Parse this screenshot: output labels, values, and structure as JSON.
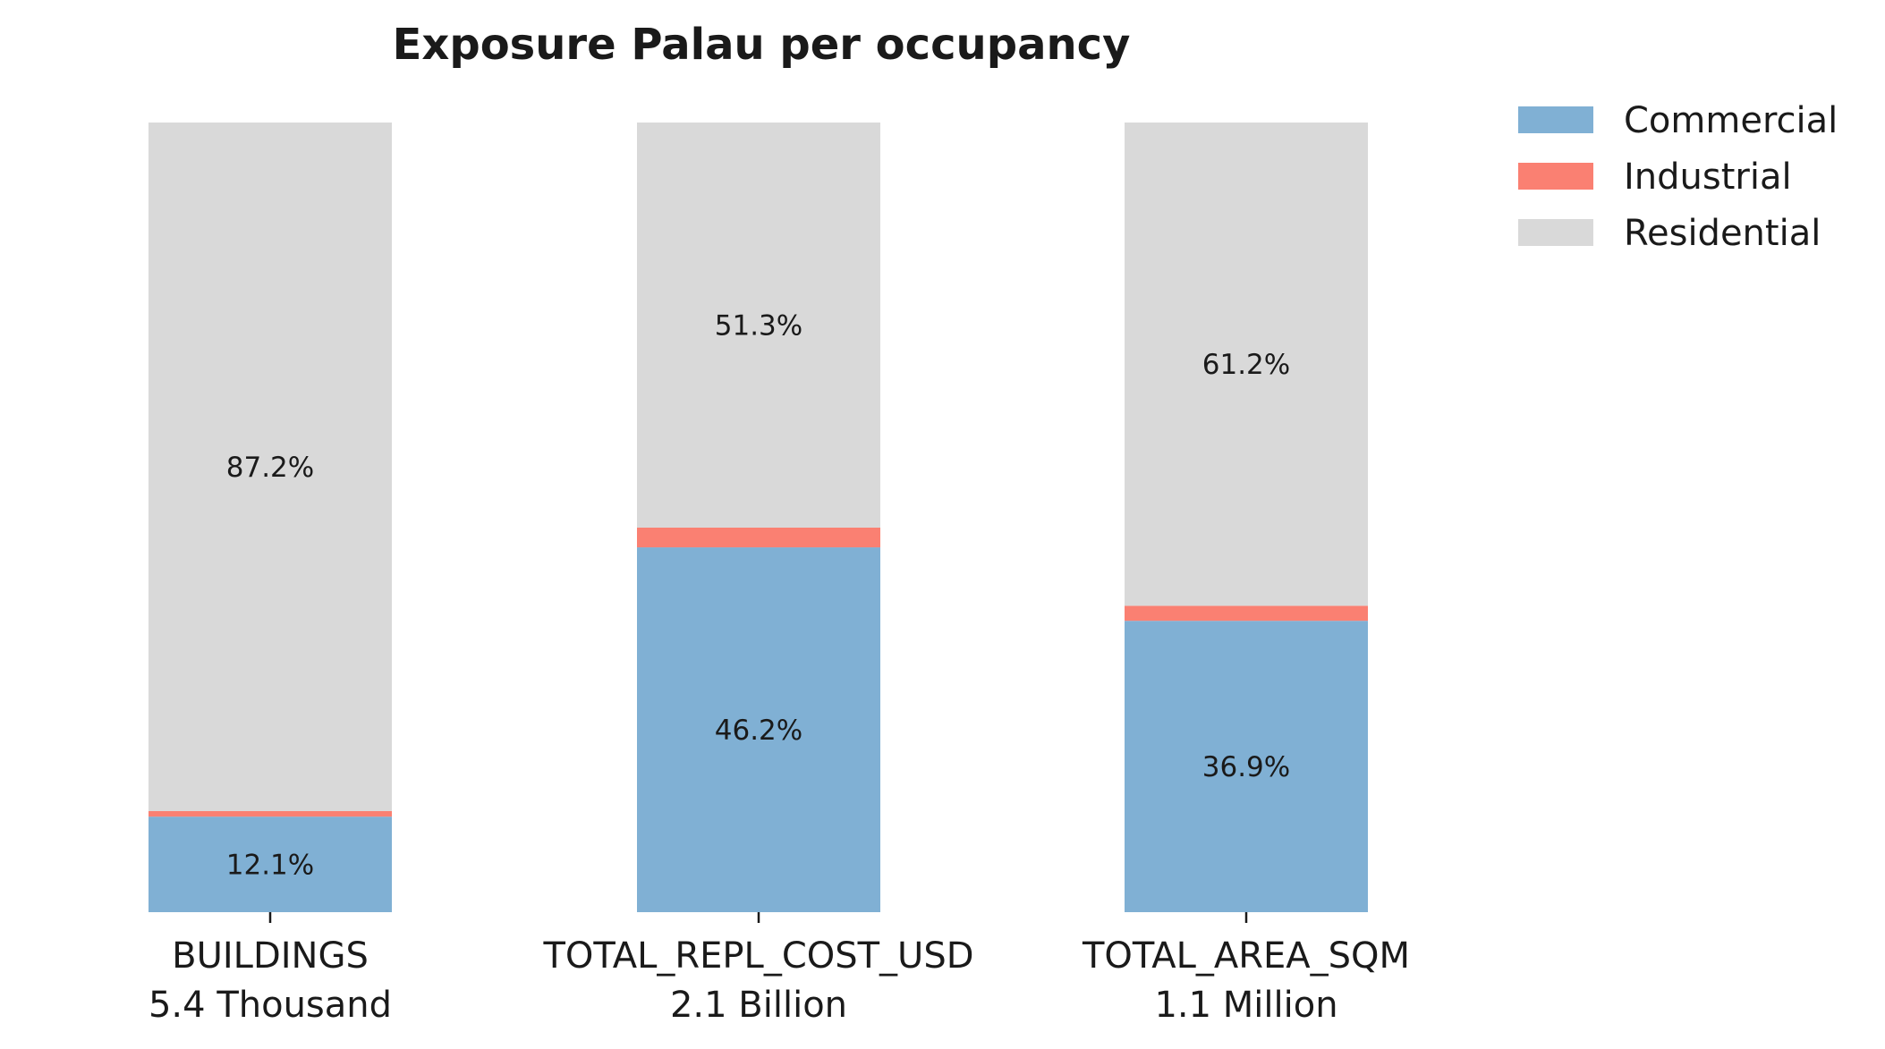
{
  "chart_data": {
    "type": "bar",
    "stacked": true,
    "normalized": true,
    "title": "Exposure Palau per occupancy",
    "xlabel": "",
    "ylabel": "",
    "ylim": [
      0,
      100
    ],
    "grid": false,
    "legend_position": "top-right",
    "categories": [
      "BUILDINGS",
      "TOTAL_REPL_COST_USD",
      "TOTAL_AREA_SQM"
    ],
    "category_totals": [
      "5.4 Thousand",
      "2.1 Billion",
      "1.1 Million"
    ],
    "series": [
      {
        "name": "Commercial",
        "color": "#80b0d4",
        "values": [
          12.1,
          46.2,
          36.9
        ],
        "labels": [
          "12.1%",
          "46.2%",
          "36.9%"
        ]
      },
      {
        "name": "Industrial",
        "color": "#fa8072",
        "values": [
          0.7,
          2.5,
          1.9
        ],
        "labels": [
          "",
          "",
          ""
        ]
      },
      {
        "name": "Residential",
        "color": "#d9d9d9",
        "values": [
          87.2,
          51.3,
          61.2
        ],
        "labels": [
          "87.2%",
          "51.3%",
          "61.2%"
        ]
      }
    ]
  }
}
